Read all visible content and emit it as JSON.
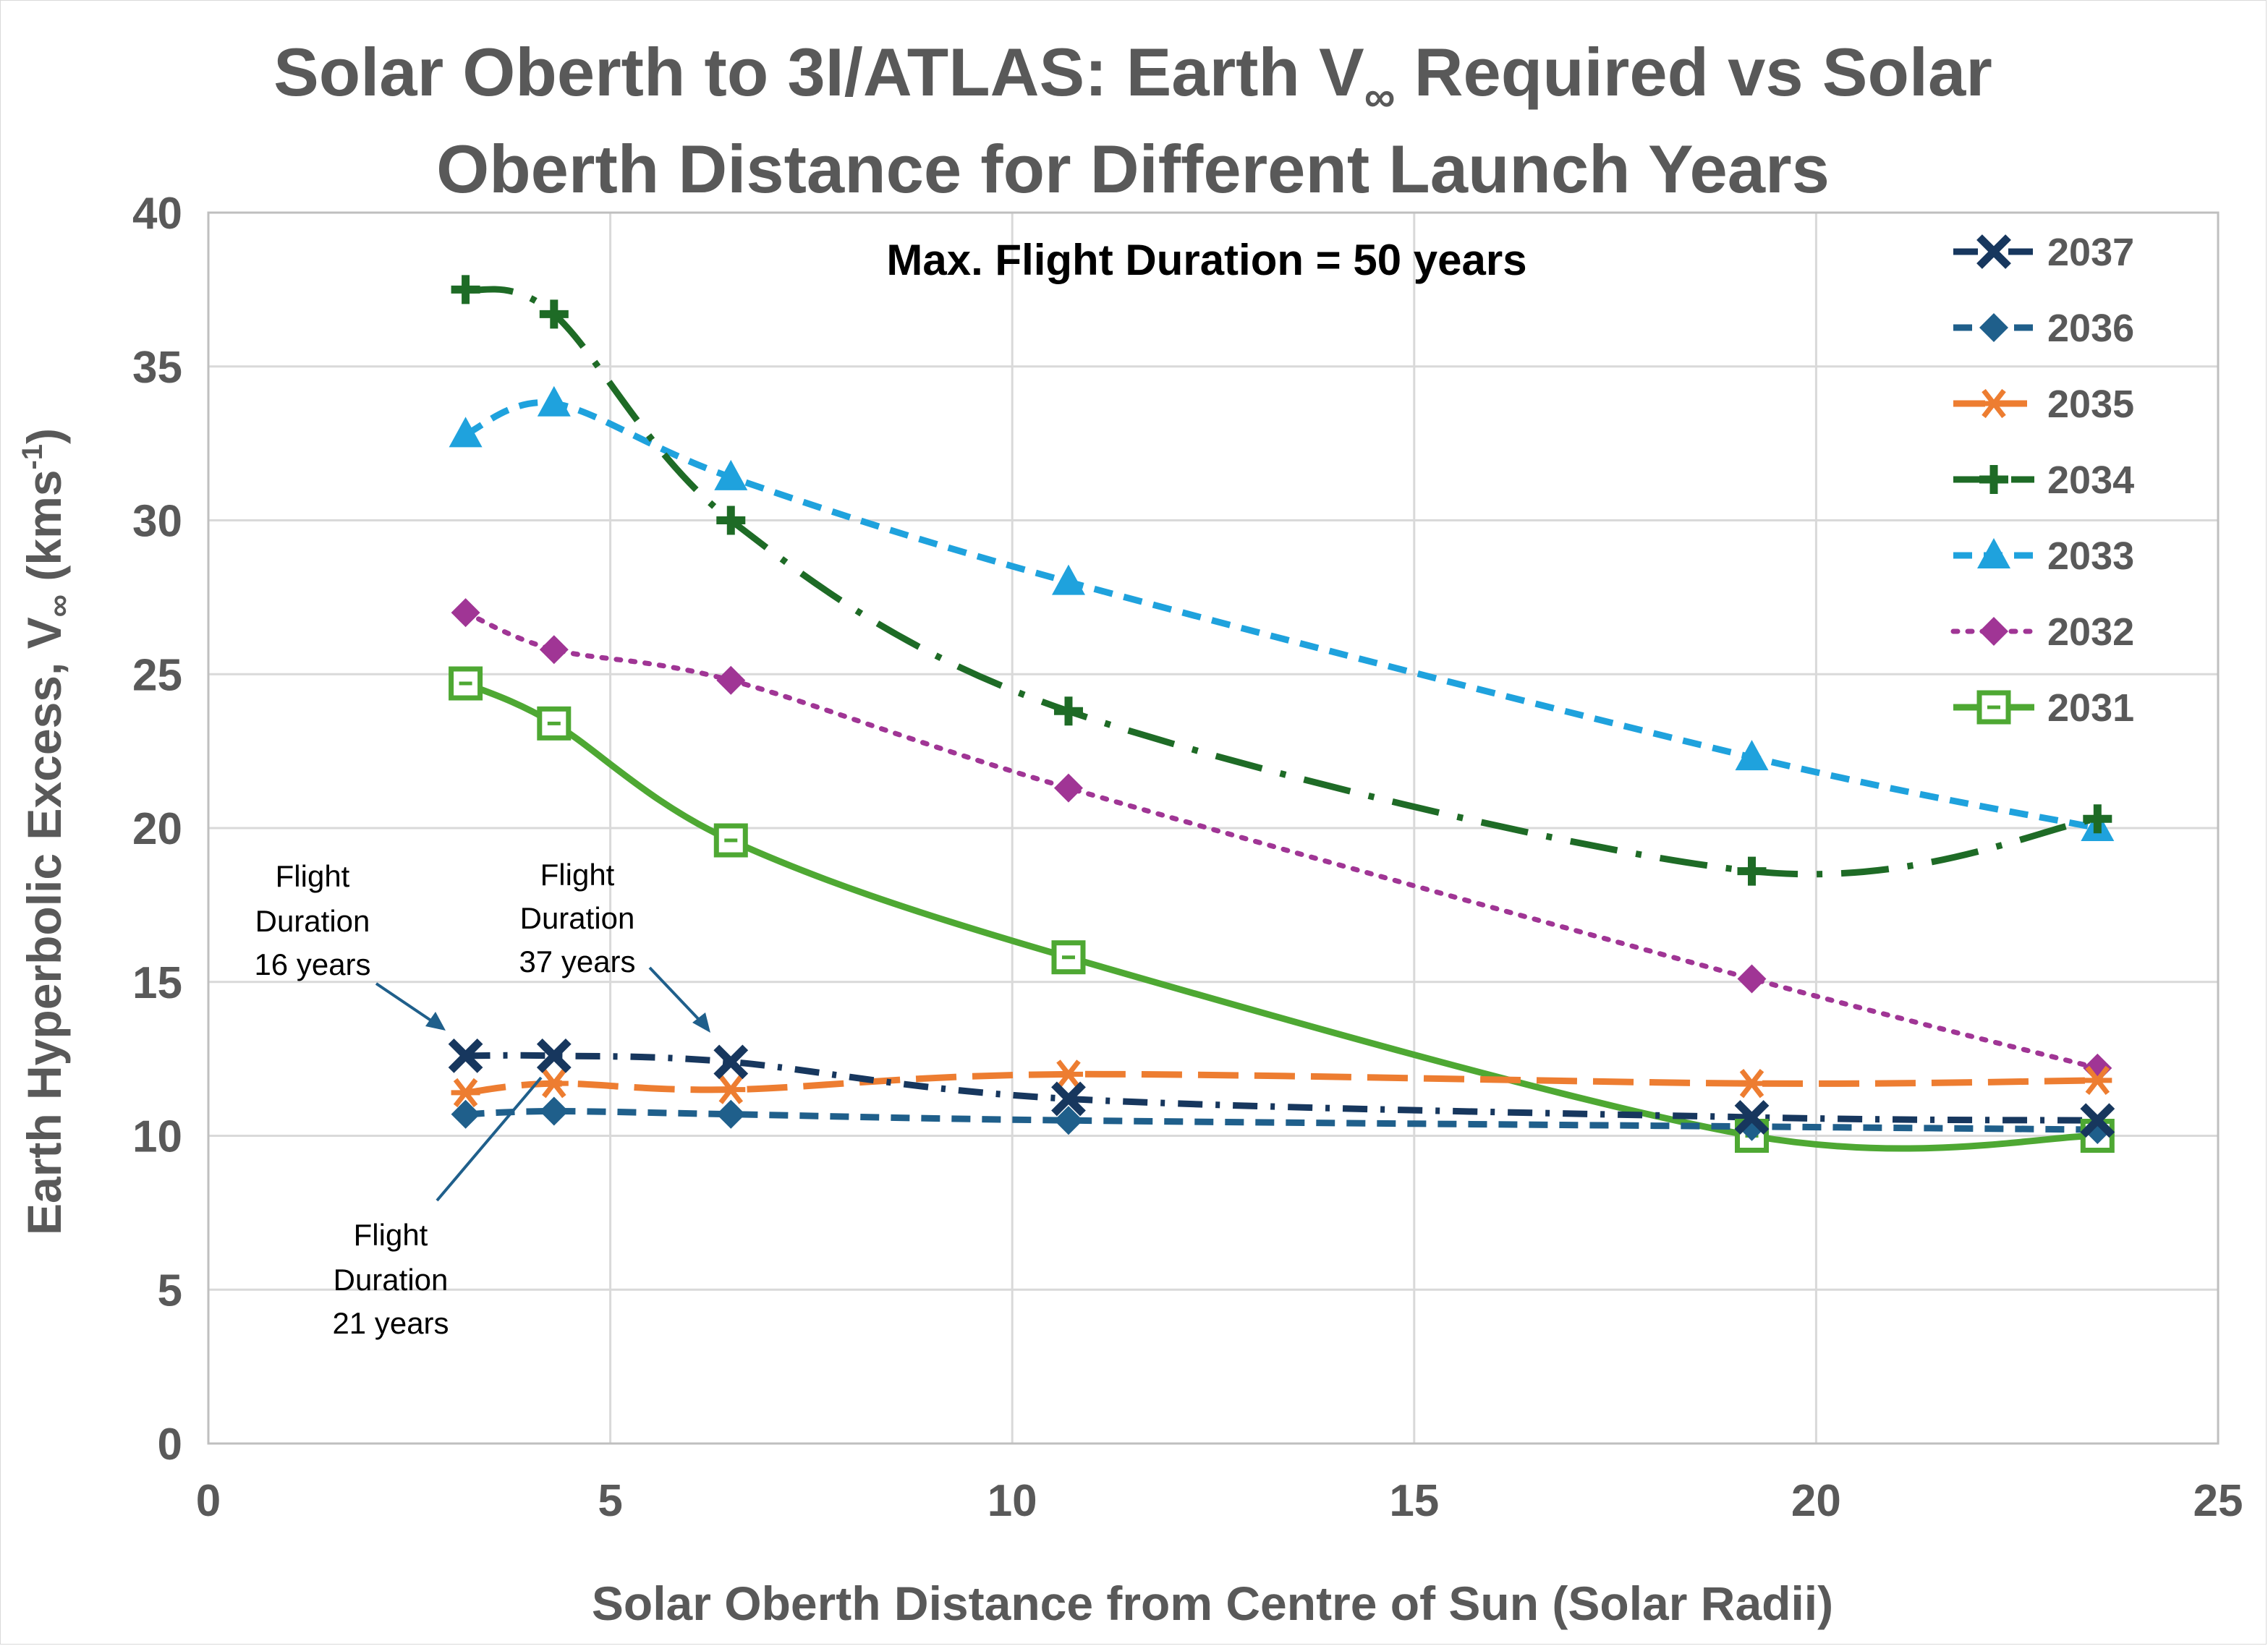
{
  "chart_data": {
    "type": "line",
    "title_line1": "Solar Oberth to 3I/ATLAS: Earth V",
    "title_line1_sub": "∞",
    "title_line1_end": " Required vs Solar",
    "title_line2": "Oberth Distance for Different Launch Years",
    "subtitle": "Max. Flight Duration = 50 years",
    "xlabel": "Solar Oberth Distance from Centre of Sun (Solar Radii)",
    "ylabel_main": "Earth Hyperbolic Excess, V",
    "ylabel_sub": "∞",
    "ylabel_units": " (kms",
    "ylabel_sup": "-1",
    "ylabel_close": ")",
    "xlim": [
      0,
      25
    ],
    "ylim": [
      0,
      40
    ],
    "xticks": [
      0,
      5,
      10,
      15,
      20,
      25
    ],
    "yticks": [
      0,
      5,
      10,
      15,
      20,
      25,
      30,
      35,
      40
    ],
    "grid": true,
    "legend_position": "top-right",
    "series": [
      {
        "name": "2037",
        "color": "#17375e",
        "marker": "x",
        "dash": "dashdot-short",
        "x": [
          3.2,
          4.3,
          6.5,
          10.7,
          19.2,
          23.5
        ],
        "y": [
          12.6,
          12.6,
          12.4,
          11.2,
          10.6,
          10.5
        ]
      },
      {
        "name": "2036",
        "color": "#1f5f8b",
        "marker": "diamond",
        "dash": "dash",
        "x": [
          3.2,
          4.3,
          6.5,
          10.7,
          19.2,
          23.5
        ],
        "y": [
          10.7,
          10.8,
          10.7,
          10.5,
          10.3,
          10.2
        ]
      },
      {
        "name": "2035",
        "color": "#ed7d31",
        "marker": "asterisk",
        "dash": "longdash",
        "x": [
          3.2,
          4.3,
          6.5,
          10.7,
          19.2,
          23.5
        ],
        "y": [
          11.4,
          11.7,
          11.5,
          12.0,
          11.7,
          11.8
        ]
      },
      {
        "name": "2034",
        "color": "#1e6b26",
        "marker": "plus",
        "dash": "longdashdot",
        "x": [
          3.2,
          4.3,
          6.5,
          10.7,
          19.2,
          23.5
        ],
        "y": [
          37.5,
          36.7,
          30.0,
          23.8,
          18.6,
          20.3
        ]
      },
      {
        "name": "2033",
        "color": "#1fa2dd",
        "marker": "triangle",
        "dash": "dash",
        "x": [
          3.2,
          4.3,
          6.5,
          10.7,
          19.2,
          23.5
        ],
        "y": [
          32.8,
          33.8,
          31.4,
          28.0,
          22.3,
          20.0
        ]
      },
      {
        "name": "2032",
        "color": "#a03595",
        "marker": "diamond",
        "dash": "dot",
        "x": [
          3.2,
          4.3,
          6.5,
          10.7,
          19.2,
          23.5
        ],
        "y": [
          27.0,
          25.8,
          24.8,
          21.3,
          15.1,
          12.2
        ]
      },
      {
        "name": "2031",
        "color": "#4ea833",
        "marker": "square",
        "dash": "solid",
        "x": [
          3.2,
          4.3,
          6.5,
          10.7,
          19.2,
          23.5
        ],
        "y": [
          24.7,
          23.4,
          19.6,
          15.8,
          10.0,
          10.0
        ]
      }
    ],
    "annotations": [
      {
        "lines": [
          "Flight",
          "Duration",
          "16 years"
        ]
      },
      {
        "lines": [
          "Flight",
          "Duration",
          "37 years"
        ]
      },
      {
        "lines": [
          "Flight",
          "Duration",
          "21 years"
        ]
      }
    ]
  }
}
